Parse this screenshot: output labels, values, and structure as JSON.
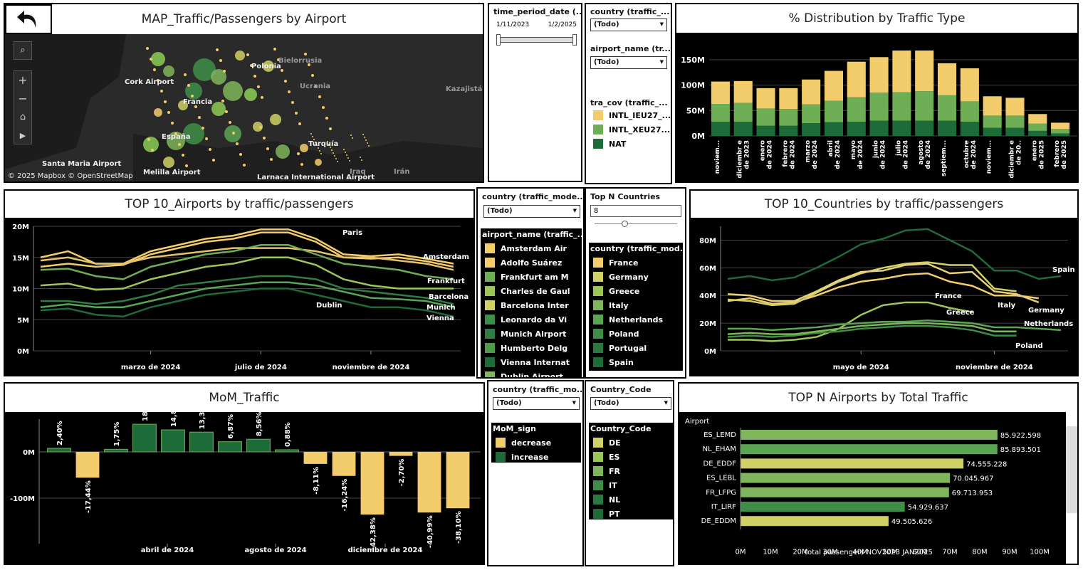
{
  "colors": {
    "yellow": "#f3cc6c",
    "lightgreen": "#7fb55b",
    "green": "#5aa551",
    "dark": "#1e6b3a",
    "mid": "#3e8e48",
    "bright": "#9cc65a"
  },
  "map": {
    "title": "MAP_Traffic/Passengers by Airport",
    "attribution": "© 2025 Mapbox  © OpenStreetMap",
    "labels": [
      "Cork Airport",
      "Santa Maria Airport",
      "Melilla Airport",
      "Larnaca International Airport",
      "Bielorrusia",
      "Ucrania",
      "Kazajistán",
      "Francia",
      "Turquía",
      "Iraq",
      "Irán",
      "Polonia",
      "España"
    ]
  },
  "time_filter": {
    "title": "time_period_date (...",
    "start": "1/11/2023",
    "end": "1/2/2025"
  },
  "filter_country1": {
    "title": "country (traffic_...",
    "value": "(Todo)"
  },
  "filter_airport1": {
    "title": "airport_name (tr...",
    "value": "(Todo)"
  },
  "tra_cov": {
    "title": "tra_cov (traffic_...",
    "items": [
      {
        "label": "INTL_IEU27_...",
        "color": "#f3cc6c"
      },
      {
        "label": "INTL_XEU27...",
        "color": "#6eae55"
      },
      {
        "label": "NAT",
        "color": "#1e6b3a"
      }
    ]
  },
  "distribution": {
    "title": "% Distribution by Traffic Type"
  },
  "top_airports": {
    "title": "TOP 10_Airports by traffic/passengers"
  },
  "filter_country2": {
    "title": "country (traffic_mode...",
    "value": "(Todo)"
  },
  "airport_legend": {
    "title": "airport_name (traffic_...",
    "items": [
      {
        "label": "Amsterdam Air",
        "color": "#f3cc6c"
      },
      {
        "label": "Adolfo Suárez",
        "color": "#f3cc6c"
      },
      {
        "label": "Frankfurt am M",
        "color": "#6eae55"
      },
      {
        "label": "Charles de Gaul",
        "color": "#9cc65a"
      },
      {
        "label": "Barcelona Inter",
        "color": "#cfd066"
      },
      {
        "label": "Leonardo da Vi",
        "color": "#3e8e48"
      },
      {
        "label": "Munich Airport",
        "color": "#2f7d42"
      },
      {
        "label": "Humberto Delg",
        "color": "#4f9a4d"
      },
      {
        "label": "Vienna Internat",
        "color": "#1e6b3a"
      },
      {
        "label": "Dublin Airport",
        "color": "#7fb55b"
      }
    ]
  },
  "topn": {
    "title": "Top N Countries",
    "value": "8"
  },
  "country_legend": {
    "title": "country (traffic_mod...",
    "items": [
      {
        "label": "France",
        "color": "#f3cc6c"
      },
      {
        "label": "Germany",
        "color": "#cfd066"
      },
      {
        "label": "Greece",
        "color": "#9cc65a"
      },
      {
        "label": "Italy",
        "color": "#7fb55b"
      },
      {
        "label": "Netherlands",
        "color": "#5aa551"
      },
      {
        "label": "Poland",
        "color": "#3e8e48"
      },
      {
        "label": "Portugal",
        "color": "#2a7840"
      },
      {
        "label": "Spain",
        "color": "#1e6b3a"
      }
    ]
  },
  "top_countries": {
    "title": "TOP 10_Countries by traffic/passengers"
  },
  "mom": {
    "title": "MoM_Traffic"
  },
  "filter_country3": {
    "title": "country (traffic_mo...",
    "value": "(Todo)"
  },
  "mom_legend": {
    "title": "MoM_sign",
    "items": [
      {
        "label": "decrease",
        "color": "#f3cc6c"
      },
      {
        "label": "increase",
        "color": "#1e6b3a"
      }
    ]
  },
  "country_code": {
    "title": "Country_Code",
    "value": "(Todo)",
    "legend_title": "Country_Code",
    "items": [
      {
        "label": "DE",
        "color": "#cfd066"
      },
      {
        "label": "ES",
        "color": "#9cc65a"
      },
      {
        "label": "FR",
        "color": "#7fb55b"
      },
      {
        "label": "IT",
        "color": "#3e8e48"
      },
      {
        "label": "NL",
        "color": "#2a7840"
      },
      {
        "label": "PT",
        "color": "#1e6b3a"
      }
    ]
  },
  "topn_airports": {
    "title": "TOP N Airports by Total Traffic",
    "row_header": "Airport",
    "xlabel": "total passengers NOV2023 JAN2025"
  },
  "chart_data": [
    {
      "type": "bar",
      "stacked": true,
      "title": "% Distribution by Traffic Type",
      "categories": [
        "noviembre de 2023",
        "diciembre de 2023",
        "enero de 2024",
        "febrero de 2024",
        "marzo de 2024",
        "abril de 2024",
        "mayo de 2024",
        "junio de 2024",
        "julio de 2024",
        "agosto de 2024",
        "septiembre de 2024",
        "octubre de 2024",
        "noviembre de 2024",
        "diciembre de 2024",
        "enero de 2025",
        "febrero de 2025"
      ],
      "tick_labels": [
        "noviem...",
        "diciembr e de 2023",
        "enero de 2024",
        "febrero de 2024",
        "marzo de 2024",
        "abril de 2024",
        "mayo de 2024",
        "junio de 2024",
        "julio de 2024",
        "agosto de 2024",
        "septiem...",
        "octubre de 2024",
        "noviem...",
        "diciembr e de 20..",
        "enero de 2025",
        "febrero de 2025"
      ],
      "series": [
        {
          "name": "NAT",
          "values": [
            28,
            28,
            20,
            20,
            25,
            27,
            28,
            30,
            30,
            30,
            30,
            28,
            16,
            16,
            10,
            5
          ]
        },
        {
          "name": "INTL_XEU27...",
          "values": [
            35,
            37,
            34,
            33,
            37,
            42,
            48,
            55,
            56,
            58,
            50,
            40,
            24,
            24,
            14,
            9
          ]
        },
        {
          "name": "INTL_IEU27_...",
          "values": [
            44,
            43,
            40,
            41,
            49,
            59,
            70,
            70,
            82,
            80,
            63,
            65,
            38,
            35,
            19,
            12
          ]
        }
      ],
      "ylim": [
        0,
        175
      ],
      "yticks": [
        "0M",
        "50M",
        "100M",
        "150M"
      ]
    },
    {
      "type": "line",
      "title": "TOP 10_Airports by traffic/passengers",
      "x": [
        "nov 2023",
        "dic 2023",
        "ene 2024",
        "feb 2024",
        "mar 2024",
        "abr 2024",
        "may 2024",
        "jun 2024",
        "jul 2024",
        "ago 2024",
        "sep 2024",
        "oct 2024",
        "nov 2024",
        "dic 2024",
        "ene 2025",
        "feb 2025"
      ],
      "xticks": [
        "marzo de 2024",
        "julio de 2024",
        "noviembre de 2024"
      ],
      "yticks": [
        "0M",
        "5M",
        "10M",
        "15M",
        "20M"
      ],
      "ylim": [
        0,
        20
      ],
      "series": [
        {
          "name": "Paris",
          "values": [
            15,
            16,
            14,
            14,
            16,
            17,
            18,
            18.5,
            19.5,
            19.5,
            18,
            15.5,
            15.2,
            15.5,
            14.8,
            14
          ]
        },
        {
          "name": "Amsterdam",
          "values": [
            13.5,
            14,
            13.5,
            13.8,
            15.5,
            16.5,
            17.5,
            18,
            19,
            19,
            17.5,
            15,
            14.8,
            15,
            14.4,
            13.5
          ]
        },
        {
          "name": "",
          "values": [
            14.5,
            15,
            14,
            14,
            15,
            15.5,
            16,
            16.5,
            16.5,
            16.5,
            16,
            15,
            15,
            14.5,
            14,
            13
          ]
        },
        {
          "name": "Frankfurt",
          "values": [
            13,
            13.2,
            12,
            11.5,
            13.5,
            14.5,
            15.5,
            16,
            17,
            17,
            15.5,
            14,
            13.5,
            13,
            12,
            11.5
          ]
        },
        {
          "name": "Barcelona",
          "values": [
            10.5,
            10.8,
            9.8,
            10,
            11.5,
            12.5,
            13.5,
            14,
            15,
            15,
            13.8,
            11.5,
            10.5,
            10,
            10,
            10
          ]
        },
        {
          "name": "Munich",
          "values": [
            8,
            8,
            7.5,
            8,
            9,
            10.5,
            11,
            11.5,
            12,
            12,
            11.5,
            10,
            9.5,
            9,
            8.5,
            7.5
          ]
        },
        {
          "name": "Dublin",
          "values": [
            7,
            7.5,
            7,
            7,
            8,
            9,
            10,
            10.5,
            11,
            11,
            10.5,
            9.5,
            8.5,
            8.3,
            8,
            7
          ]
        },
        {
          "name": "Vienna",
          "values": [
            6.5,
            6.8,
            5.8,
            5.5,
            7,
            8,
            9,
            9.5,
            10,
            10,
            9,
            8,
            7,
            7,
            6.5,
            5.5
          ]
        }
      ],
      "labels": [
        "Paris",
        "Amsterdam",
        "Frankfurt",
        "Barcelona",
        "Munich",
        "Dublin",
        "Vienna"
      ]
    },
    {
      "type": "line",
      "title": "TOP 10_Countries by traffic/passengers",
      "x": [
        "nov 2023",
        "dic 2023",
        "ene 2024",
        "feb 2024",
        "mar 2024",
        "abr 2024",
        "may 2024",
        "jun 2024",
        "jul 2024",
        "ago 2024",
        "sep 2024",
        "oct 2024",
        "nov 2024",
        "dic 2024",
        "ene 2025",
        "feb 2025"
      ],
      "xticks": [
        "mayo de 2024",
        "noviembre de 2024"
      ],
      "yticks": [
        "0M",
        "20M",
        "40M",
        "60M",
        "80M"
      ],
      "ylim": [
        0,
        90
      ],
      "series": [
        {
          "name": "Spain",
          "values": [
            52,
            54,
            51,
            53,
            60,
            68,
            77,
            81,
            87,
            88,
            80,
            72,
            58,
            58,
            52,
            54
          ]
        },
        {
          "name": "France",
          "values": [
            36,
            38,
            34,
            35,
            40,
            46,
            50,
            52,
            55,
            56,
            50,
            47,
            40,
            40,
            38,
            null
          ]
        },
        {
          "name": "Italy",
          "values": [
            37,
            36,
            33,
            34,
            42,
            50,
            56,
            60,
            63,
            64,
            62,
            62,
            45,
            43,
            null,
            null
          ]
        },
        {
          "name": "Germany",
          "values": [
            41,
            40,
            36,
            36,
            43,
            51,
            57,
            58,
            62,
            63,
            56,
            57,
            43,
            41,
            35,
            null
          ]
        },
        {
          "name": "Greece",
          "values": [
            8,
            8,
            7,
            8,
            10,
            16,
            26,
            33,
            35,
            35,
            31,
            28,
            null,
            null,
            null,
            null
          ]
        },
        {
          "name": "Netherlands",
          "values": [
            16,
            16,
            15,
            16,
            17,
            19,
            20,
            21,
            21,
            22,
            21,
            20,
            17,
            17,
            16,
            15
          ]
        },
        {
          "name": "Poland",
          "values": [
            10,
            11,
            10,
            11,
            13,
            14,
            16,
            17,
            18,
            18,
            17,
            15,
            11,
            11,
            null,
            null
          ]
        },
        {
          "name": "Portugal",
          "values": [
            12,
            13,
            12,
            12,
            14,
            16,
            18,
            19,
            20,
            20,
            19,
            18,
            14,
            14,
            null,
            null
          ]
        }
      ],
      "labels": [
        "Spain",
        "France",
        "Italy",
        "Germany",
        "Greece",
        "Netherlands",
        "Poland"
      ]
    },
    {
      "type": "bar",
      "title": "MoM_Traffic",
      "categories": [
        "dic 2023",
        "ene 2024",
        "feb 2024",
        "mar 2024",
        "abr 2024",
        "may 2024",
        "jun 2024",
        "jul 2024",
        "ago 2024",
        "sep 2024",
        "oct 2024",
        "nov 2024",
        "dic 2024",
        "ene 2025",
        "feb 2025"
      ],
      "values": [
        2.4,
        -17.44,
        1.75,
        18.69,
        14.86,
        13.35,
        6.87,
        8.56,
        0.88,
        -8.11,
        -16.24,
        -42.38,
        -2.7,
        -40.99,
        -38.1
      ],
      "value_labels": [
        "2,40%",
        "-17,44%",
        "1,75%",
        "18,69%",
        "14,86%",
        "13,35%",
        "6,87%",
        "8,56%",
        "0,88%",
        "-8,11%",
        "-16,24%",
        "-42,38%",
        "-2,70%",
        "-40,99%",
        "-38,10%"
      ],
      "yticks": [
        "0M",
        "-100M"
      ],
      "xticks": [
        "abril de 2024",
        "agosto de 2024",
        "diciembre de 2024"
      ]
    },
    {
      "type": "bar",
      "orientation": "horizontal",
      "title": "TOP N Airports by Total Traffic",
      "categories": [
        "ES_LEMD",
        "NL_EHAM",
        "DE_EDDF",
        "ES_LEBL",
        "FR_LFPG",
        "IT_LIRF",
        "DE_EDDM"
      ],
      "values": [
        85922598,
        85893501,
        74555228,
        70045967,
        69713953,
        54929637,
        49505626
      ],
      "value_labels": [
        "85.922.598",
        "85.893.501",
        "74.555.228",
        "70.045.967",
        "69.713.953",
        "54.929.637",
        "49.505.626"
      ],
      "colors": [
        "#7fb55b",
        "#5aa551",
        "#cfd066",
        "#7fb55b",
        "#7fb55b",
        "#3e8e48",
        "#cfd066"
      ],
      "xticks": [
        "0M",
        "10M",
        "20M",
        "30M",
        "40M",
        "50M",
        "60M",
        "70M",
        "80M",
        "90M",
        "100M"
      ],
      "xlim": [
        0,
        100
      ],
      "xlabel": "total passengers NOV2023 JAN2025"
    }
  ]
}
